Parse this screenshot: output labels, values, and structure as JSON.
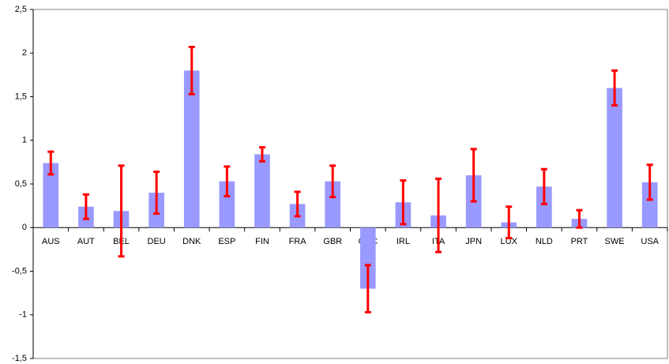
{
  "chart_data": {
    "type": "bar",
    "categories": [
      "AUS",
      "AUT",
      "BEL",
      "DEU",
      "DNK",
      "ESP",
      "FIN",
      "FRA",
      "GBR",
      "GRC",
      "IRL",
      "ITA",
      "JPN",
      "LUX",
      "NLD",
      "PRT",
      "SWE",
      "USA"
    ],
    "values": [
      0.74,
      0.24,
      0.19,
      0.4,
      1.8,
      0.53,
      0.84,
      0.27,
      0.53,
      -0.7,
      0.29,
      0.14,
      0.6,
      0.06,
      0.47,
      0.1,
      1.6,
      0.52
    ],
    "errors": [
      0.13,
      0.14,
      0.52,
      0.24,
      0.27,
      0.17,
      0.08,
      0.14,
      0.18,
      0.27,
      0.25,
      0.42,
      0.3,
      0.18,
      0.2,
      0.1,
      0.2,
      0.2
    ],
    "color": "#9999ff",
    "error_color": "#ff0000",
    "ylim": [
      -1.5,
      2.5
    ],
    "yticks": [
      {
        "value": -1.5,
        "label": "-1,5"
      },
      {
        "value": -1,
        "label": "-1"
      },
      {
        "value": -0.5,
        "label": "-0,5"
      },
      {
        "value": 0,
        "label": "0"
      },
      {
        "value": 0.5,
        "label": "0,5"
      },
      {
        "value": 1,
        "label": "1"
      },
      {
        "value": 1.5,
        "label": "1,5"
      },
      {
        "value": 2,
        "label": "2"
      },
      {
        "value": 2.5,
        "label": "2,5"
      }
    ],
    "grid": false
  }
}
